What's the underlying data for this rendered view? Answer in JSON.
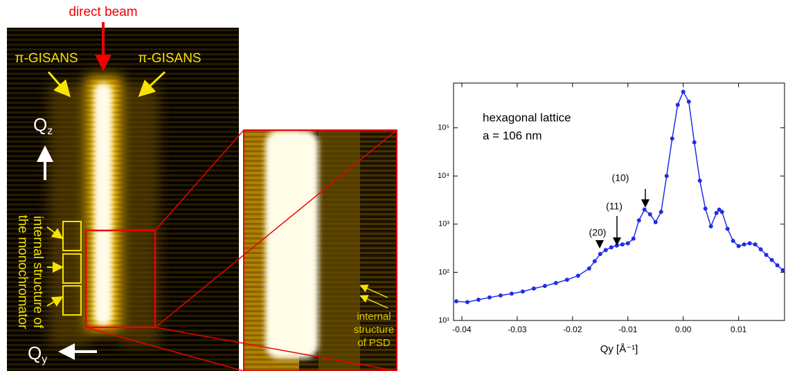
{
  "detector": {
    "direct_beam": "direct beam",
    "gisans_left": "π-GISANS",
    "gisans_right": "π-GISANS",
    "qz": {
      "main": "Q",
      "sub": "z"
    },
    "qy": {
      "main": "Q",
      "sub": "y"
    },
    "mono_line1": "internal structure of",
    "mono_line2": "the monochromator"
  },
  "zoom": {
    "psd_line1": "internal",
    "psd_line2": "structure",
    "psd_line3": "of PSD"
  },
  "chart_data": {
    "type": "scatter",
    "x_label": "Qy [Å⁻¹]",
    "color": "#1f2ee6",
    "log_y": true,
    "annotations": [
      "hexagonal lattice",
      "a = 106 nm",
      "(10)",
      "(11)",
      "(20)"
    ],
    "x": [
      -0.041,
      -0.039,
      -0.037,
      -0.035,
      -0.033,
      -0.031,
      -0.029,
      -0.027,
      -0.025,
      -0.023,
      -0.021,
      -0.019,
      -0.017,
      -0.016,
      -0.015,
      -0.014,
      -0.013,
      -0.012,
      -0.011,
      -0.01,
      -0.009,
      -0.008,
      -0.007,
      -0.006,
      -0.005,
      -0.004,
      -0.003,
      -0.002,
      -0.001,
      0.0,
      0.001,
      0.002,
      0.003,
      0.004,
      0.005,
      0.006,
      0.0065,
      0.007,
      0.008,
      0.009,
      0.01,
      0.011,
      0.012,
      0.013,
      0.014,
      0.015,
      0.016,
      0.017,
      0.018
    ],
    "values": [
      25,
      24,
      27,
      30,
      33,
      36,
      40,
      46,
      52,
      60,
      70,
      85,
      120,
      170,
      240,
      290,
      330,
      360,
      380,
      400,
      500,
      1200,
      2000,
      1600,
      1100,
      1800,
      10000,
      60000,
      300000,
      560000,
      350000,
      50000,
      8000,
      2100,
      900,
      1700,
      2000,
      1800,
      800,
      450,
      350,
      380,
      400,
      380,
      300,
      230,
      180,
      140,
      110
    ],
    "xlim": [
      -0.0415,
      0.0183
    ],
    "xticks": [
      -0.04,
      -0.03,
      -0.02,
      -0.01,
      {
        "value": 0,
        "label": "0.00"
      },
      0.01
    ],
    "ylim": [
      10,
      850000
    ],
    "yticks": [
      {
        "value": 10,
        "label": "10¹"
      },
      {
        "value": 100,
        "label": "10²"
      },
      {
        "value": 1000,
        "label": "10³"
      },
      {
        "value": 10000,
        "label": "10⁴"
      },
      {
        "value": 100000,
        "label": "10⁵"
      }
    ]
  }
}
